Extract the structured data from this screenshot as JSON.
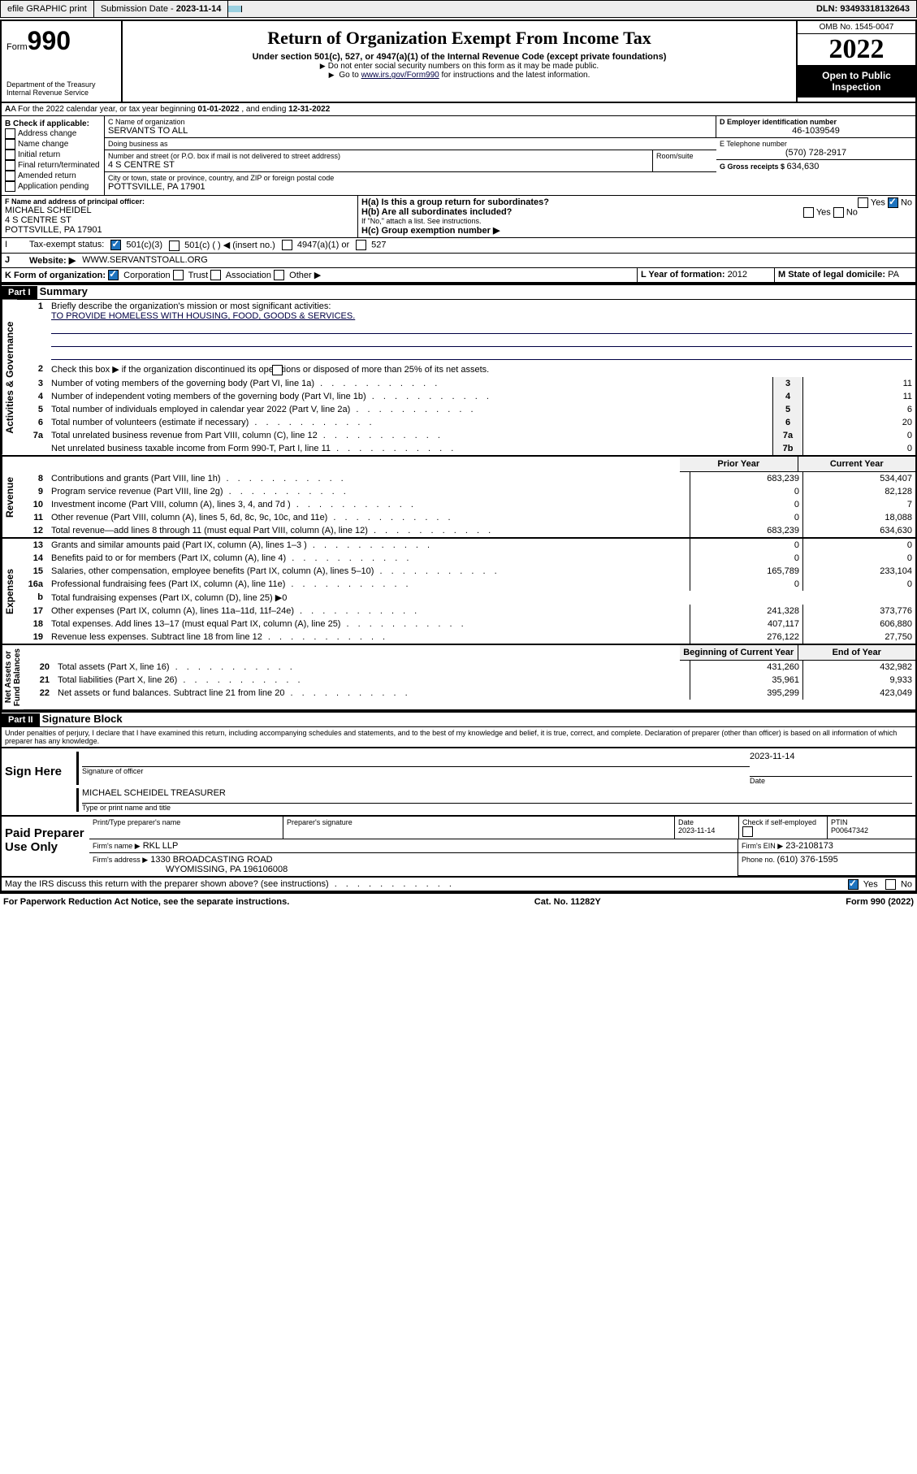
{
  "topbar": {
    "efile": "efile GRAPHIC print",
    "subdate_lbl": "Submission Date - ",
    "subdate": "2023-11-14",
    "dln_lbl": "DLN: ",
    "dln": "93493318132643"
  },
  "header": {
    "form_small": "Form",
    "form_no": "990",
    "dept": "Department of the Treasury",
    "irs": "Internal Revenue Service",
    "title": "Return of Organization Exempt From Income Tax",
    "sub": "Under section 501(c), 527, or 4947(a)(1) of the Internal Revenue Code (except private foundations)",
    "note1": "Do not enter social security numbers on this form as it may be made public.",
    "note2_pre": "Go to ",
    "note2_link": "www.irs.gov/Form990",
    "note2_post": " for instructions and the latest information.",
    "omb": "OMB No. 1545-0047",
    "year": "2022",
    "openpub": "Open to Public Inspection"
  },
  "lineA": {
    "pre": "A For the 2022 calendar year, or tax year beginning ",
    "begin": "01-01-2022",
    "mid": " , and ending ",
    "end": "12-31-2022"
  },
  "boxB": {
    "hdr": "B Check if applicable:",
    "opts": [
      "Address change",
      "Name change",
      "Initial return",
      "Final return/terminated",
      "Amended return",
      "Application pending"
    ]
  },
  "boxC": {
    "name_lbl": "C Name of organization",
    "name": "SERVANTS TO ALL",
    "dba_lbl": "Doing business as",
    "dba": "",
    "addr_lbl": "Number and street (or P.O. box if mail is not delivered to street address)",
    "room_lbl": "Room/suite",
    "addr": "4 S CENTRE ST",
    "city_lbl": "City or town, state or province, country, and ZIP or foreign postal code",
    "city": "POTTSVILLE, PA  17901"
  },
  "boxD": {
    "lbl": "D Employer identification number",
    "val": "46-1039549"
  },
  "boxE": {
    "lbl": "E Telephone number",
    "val": "(570) 728-2917"
  },
  "boxG": {
    "lbl": "G Gross receipts $ ",
    "val": "634,630"
  },
  "boxF": {
    "lbl": "F Name and address of principal officer:",
    "name": "MICHAEL SCHEIDEL",
    "addr1": "4 S CENTRE ST",
    "addr2": "POTTSVILLE, PA  17901"
  },
  "boxH": {
    "a": "H(a)  Is this a group return for subordinates?",
    "a_yes": "Yes",
    "a_no": "No",
    "b": "H(b)  Are all subordinates included?",
    "b_yes": "Yes",
    "b_no": "No",
    "note": "If \"No,\" attach a list. See instructions.",
    "c": "H(c)  Group exemption number ▶"
  },
  "lineI": {
    "lbl": "I",
    "txt": "Tax-exempt status:",
    "o1": "501(c)(3)",
    "o2": "501(c) (  ) ◀ (insert no.)",
    "o3": "4947(a)(1) or",
    "o4": "527"
  },
  "lineJ": {
    "lbl": "J",
    "txt": "Website: ▶",
    "val": "WWW.SERVANTSTOALL.ORG"
  },
  "lineK": {
    "lbl": "K Form of organization:",
    "o1": "Corporation",
    "o2": "Trust",
    "o3": "Association",
    "o4": "Other ▶"
  },
  "lineL": {
    "lbl": "L Year of formation: ",
    "val": "2012"
  },
  "lineM": {
    "lbl": "M State of legal domicile: ",
    "val": "PA"
  },
  "part1": {
    "hdr": "Part I",
    "title": "Summary"
  },
  "summary": {
    "q1": "Briefly describe the organization's mission or most significant activities:",
    "mission": "TO PROVIDE HOMELESS WITH HOUSING, FOOD, GOODS & SERVICES.",
    "q2": "Check this box ▶       if the organization discontinued its operations or disposed of more than 25% of its net assets.",
    "rows": [
      {
        "n": "3",
        "t": "Number of voting members of the governing body (Part VI, line 1a)",
        "b": "3",
        "v": "11"
      },
      {
        "n": "4",
        "t": "Number of independent voting members of the governing body (Part VI, line 1b)",
        "b": "4",
        "v": "11"
      },
      {
        "n": "5",
        "t": "Total number of individuals employed in calendar year 2022 (Part V, line 2a)",
        "b": "5",
        "v": "6"
      },
      {
        "n": "6",
        "t": "Total number of volunteers (estimate if necessary)",
        "b": "6",
        "v": "20"
      },
      {
        "n": "7a",
        "t": "Total unrelated business revenue from Part VIII, column (C), line 12",
        "b": "7a",
        "v": "0"
      },
      {
        "n": "",
        "t": "Net unrelated business taxable income from Form 990-T, Part I, line 11",
        "b": "7b",
        "v": "0"
      }
    ],
    "colhdr": {
      "p": "Prior Year",
      "c": "Current Year"
    },
    "rev": [
      {
        "n": "8",
        "t": "Contributions and grants (Part VIII, line 1h)",
        "p": "683,239",
        "c": "534,407"
      },
      {
        "n": "9",
        "t": "Program service revenue (Part VIII, line 2g)",
        "p": "0",
        "c": "82,128"
      },
      {
        "n": "10",
        "t": "Investment income (Part VIII, column (A), lines 3, 4, and 7d )",
        "p": "0",
        "c": "7"
      },
      {
        "n": "11",
        "t": "Other revenue (Part VIII, column (A), lines 5, 6d, 8c, 9c, 10c, and 11e)",
        "p": "0",
        "c": "18,088"
      },
      {
        "n": "12",
        "t": "Total revenue—add lines 8 through 11 (must equal Part VIII, column (A), line 12)",
        "p": "683,239",
        "c": "634,630"
      }
    ],
    "exp": [
      {
        "n": "13",
        "t": "Grants and similar amounts paid (Part IX, column (A), lines 1–3 )",
        "p": "0",
        "c": "0"
      },
      {
        "n": "14",
        "t": "Benefits paid to or for members (Part IX, column (A), line 4)",
        "p": "0",
        "c": "0"
      },
      {
        "n": "15",
        "t": "Salaries, other compensation, employee benefits (Part IX, column (A), lines 5–10)",
        "p": "165,789",
        "c": "233,104"
      },
      {
        "n": "16a",
        "t": "Professional fundraising fees (Part IX, column (A), line 11e)",
        "p": "0",
        "c": "0"
      },
      {
        "n": "b",
        "t": "Total fundraising expenses (Part IX, column (D), line 25) ▶0",
        "p": "",
        "c": ""
      },
      {
        "n": "17",
        "t": "Other expenses (Part IX, column (A), lines 11a–11d, 11f–24e)",
        "p": "241,328",
        "c": "373,776"
      },
      {
        "n": "18",
        "t": "Total expenses. Add lines 13–17 (must equal Part IX, column (A), line 25)",
        "p": "407,117",
        "c": "606,880"
      },
      {
        "n": "19",
        "t": "Revenue less expenses. Subtract line 18 from line 12",
        "p": "276,122",
        "c": "27,750"
      }
    ],
    "colhdr2": {
      "p": "Beginning of Current Year",
      "c": "End of Year"
    },
    "net": [
      {
        "n": "20",
        "t": "Total assets (Part X, line 16)",
        "p": "431,260",
        "c": "432,982"
      },
      {
        "n": "21",
        "t": "Total liabilities (Part X, line 26)",
        "p": "35,961",
        "c": "9,933"
      },
      {
        "n": "22",
        "t": "Net assets or fund balances. Subtract line 21 from line 20",
        "p": "395,299",
        "c": "423,049"
      }
    ]
  },
  "part2": {
    "hdr": "Part II",
    "title": "Signature Block",
    "decl": "Under penalties of perjury, I declare that I have examined this return, including accompanying schedules and statements, and to the best of my knowledge and belief, it is true, correct, and complete. Declaration of preparer (other than officer) is based on all information of which preparer has any knowledge."
  },
  "sign": {
    "here": "Sign Here",
    "sig_lbl": "Signature of officer",
    "date_lbl": "Date",
    "date": "2023-11-14",
    "name": "MICHAEL SCHEIDEL TREASURER",
    "name_lbl": "Type or print name and title"
  },
  "paid": {
    "title": "Paid Preparer Use Only",
    "h1": "Print/Type preparer's name",
    "h2": "Preparer's signature",
    "h3": "Date",
    "h4": "Check        if self-employed",
    "h5": "PTIN",
    "date": "2023-11-14",
    "ptin": "P00647342",
    "firm_lbl": "Firm's name   ▶",
    "firm": "RKL LLP",
    "ein_lbl": "Firm's EIN ▶",
    "ein": "23-2108173",
    "addr_lbl": "Firm's address ▶",
    "addr1": "1330 BROADCASTING ROAD",
    "addr2": "WYOMISSING, PA  196106008",
    "ph_lbl": "Phone no. ",
    "ph": "(610) 376-1595"
  },
  "discuss": {
    "q": "May the IRS discuss this return with the preparer shown above? (see instructions)",
    "yes": "Yes",
    "no": "No"
  },
  "footer": {
    "l": "For Paperwork Reduction Act Notice, see the separate instructions.",
    "c": "Cat. No. 11282Y",
    "r": "Form 990 (2022)"
  }
}
